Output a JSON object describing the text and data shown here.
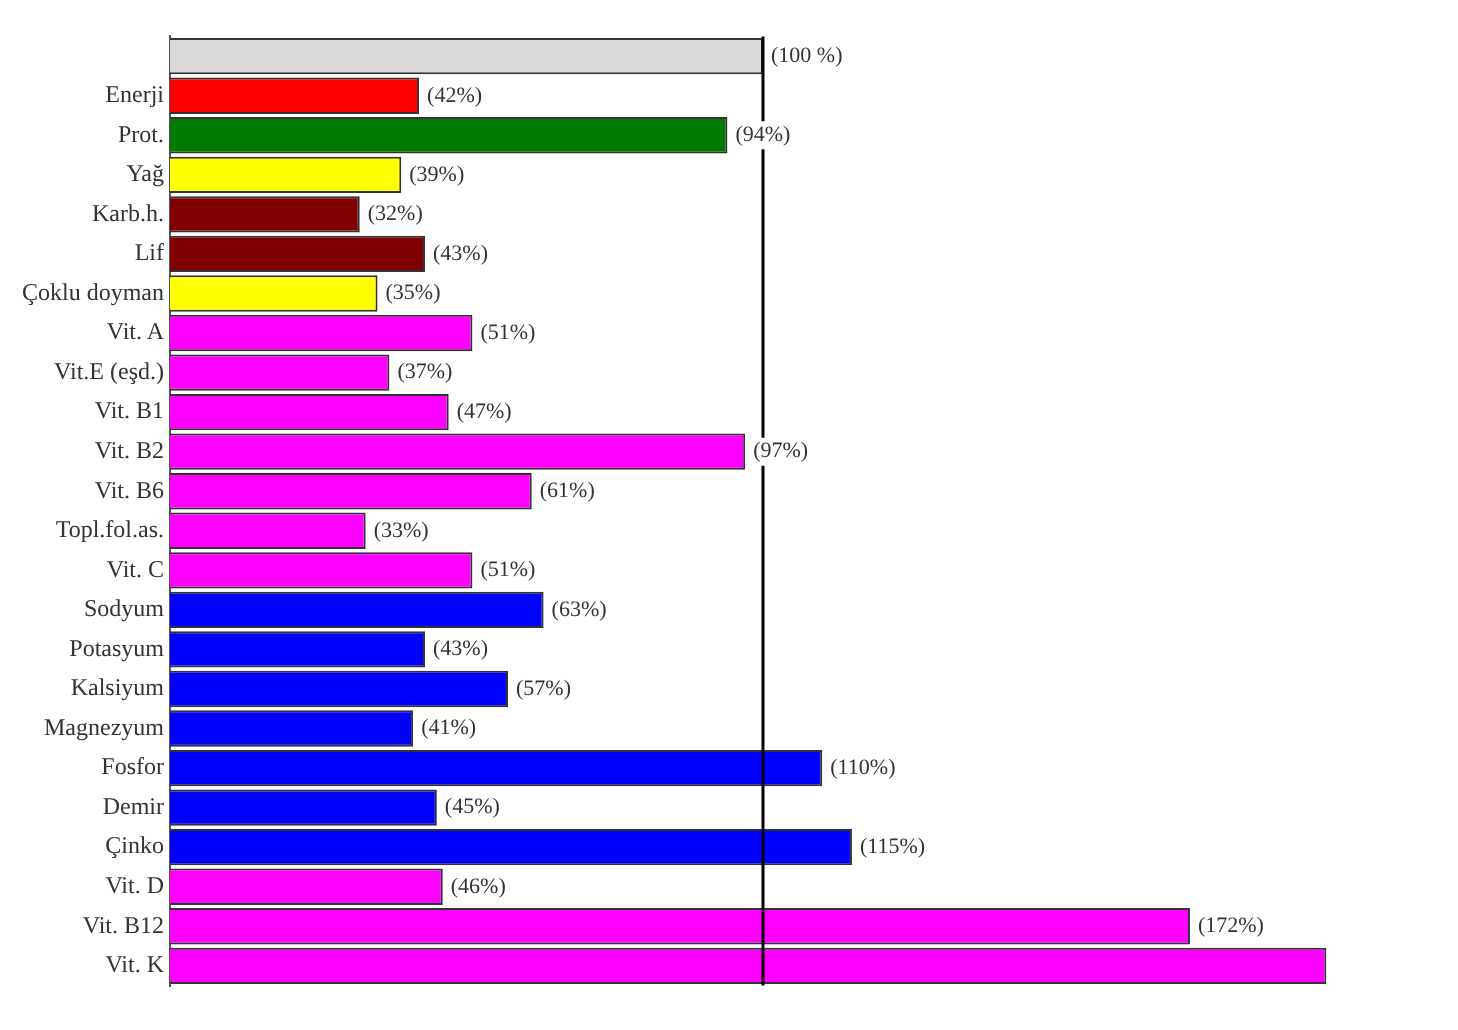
{
  "chart_data": {
    "type": "bar",
    "orientation": "horizontal",
    "categories": [
      null,
      "Enerji",
      "Prot.",
      "Yağ",
      "Karb.h.",
      "Lif",
      "Çoklu doyman",
      "Vit. A",
      "Vit.E (eşd.)",
      "Vit. B1",
      "Vit. B2",
      "Vit. B6",
      "Topl.fol.as.",
      "Vit. C",
      "Sodyum",
      "Potasyum",
      "Kalsiyum",
      "Magnezyum",
      "Fosfor",
      "Demir",
      "Çinko",
      "Vit. D",
      "Vit. B12",
      "Vit. K"
    ],
    "values": [
      100,
      42,
      94,
      39,
      32,
      43,
      35,
      51,
      37,
      47,
      97,
      61,
      33,
      51,
      63,
      43,
      57,
      41,
      110,
      45,
      115,
      46,
      172,
      195
    ],
    "value_labels": [
      "(100 %)",
      "(42%)",
      "(94%)",
      "(39%)",
      "(32%)",
      "(43%)",
      "(35%)",
      "(51%)",
      "(37%)",
      "(47%)",
      "(97%)",
      "(61%)",
      "(33%)",
      "(51%)",
      "(63%)",
      "(43%)",
      "(57%)",
      "(41%)",
      "(110%)",
      "(45%)",
      "(115%)",
      "(46%)",
      "(172%)",
      null
    ],
    "colors": [
      "#d9d9d9",
      "#ff0000",
      "#007a00",
      "#ffff00",
      "#800000",
      "#800000",
      "#ffff00",
      "#ff00ff",
      "#ff00ff",
      "#ff00ff",
      "#ff00ff",
      "#ff00ff",
      "#ff00ff",
      "#ff00ff",
      "#0000ff",
      "#0000ff",
      "#0000ff",
      "#0000ff",
      "#0000ff",
      "#0000ff",
      "#0000ff",
      "#ff00ff",
      "#ff00ff",
      "#ff00ff"
    ],
    "ref_lines": [
      {
        "axis": "x",
        "value": 100,
        "color": "#000000"
      }
    ],
    "tick_labels": "y",
    "grid": false,
    "legend": false
  }
}
